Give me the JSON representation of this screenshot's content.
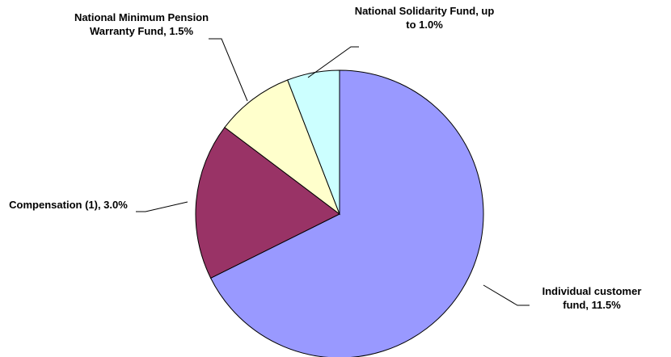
{
  "chart_data": {
    "type": "pie",
    "labels": [
      "Individual customer fund, 11.5%",
      "Compensation (1), 3.0%",
      "National Minimum Pension Warranty Fund, 1.5%",
      "National Solidarity Fund, up to 1.0%"
    ],
    "values": [
      11.5,
      3.0,
      1.5,
      1.0
    ],
    "colors": [
      "#9999ff",
      "#993366",
      "#ffffcc",
      "#ccffff"
    ]
  }
}
